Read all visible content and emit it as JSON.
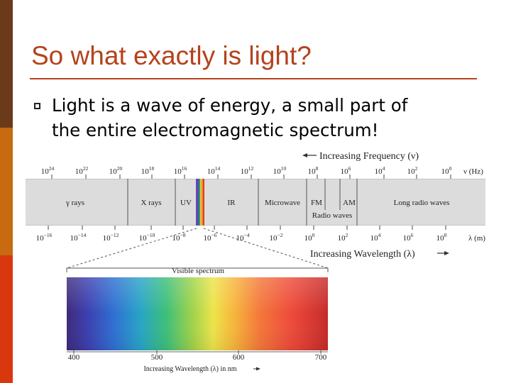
{
  "slide": {
    "title": "So what exactly is light?",
    "bullet_line1": "Light is a wave of energy, a small part of",
    "bullet_line2": "the entire electromagnetic spectrum!",
    "colors": {
      "title": "#b5421d",
      "side_bar_top": "#6b3a1a",
      "side_bar_mid": "#c86a10",
      "side_bar_bottom": "#d9380f"
    }
  },
  "spectrum": {
    "freq_title": "Increasing Frequency (ν)",
    "freq_unit": "ν (Hz)",
    "freq_exponents": [
      "24",
      "22",
      "20",
      "18",
      "16",
      "14",
      "12",
      "10",
      "8",
      "6",
      "4",
      "2",
      "0"
    ],
    "wave_title": "Increasing Wavelength (λ)",
    "wave_unit": "λ (m)",
    "wave_exponents": [
      "−16",
      "−14",
      "−12",
      "−10",
      "−8",
      "−6",
      "−4",
      "−2",
      "0",
      "2",
      "4",
      "6",
      "8"
    ],
    "regions": [
      "γ rays",
      "X rays",
      "UV",
      "IR",
      "Microwave",
      "FM",
      "AM",
      "Long radio waves"
    ],
    "radio_label": "Radio waves"
  },
  "visible": {
    "title": "Visible spectrum",
    "ticks": [
      "400",
      "500",
      "600",
      "700"
    ],
    "axis_label": "Increasing Wavelength (λ) in nm"
  }
}
